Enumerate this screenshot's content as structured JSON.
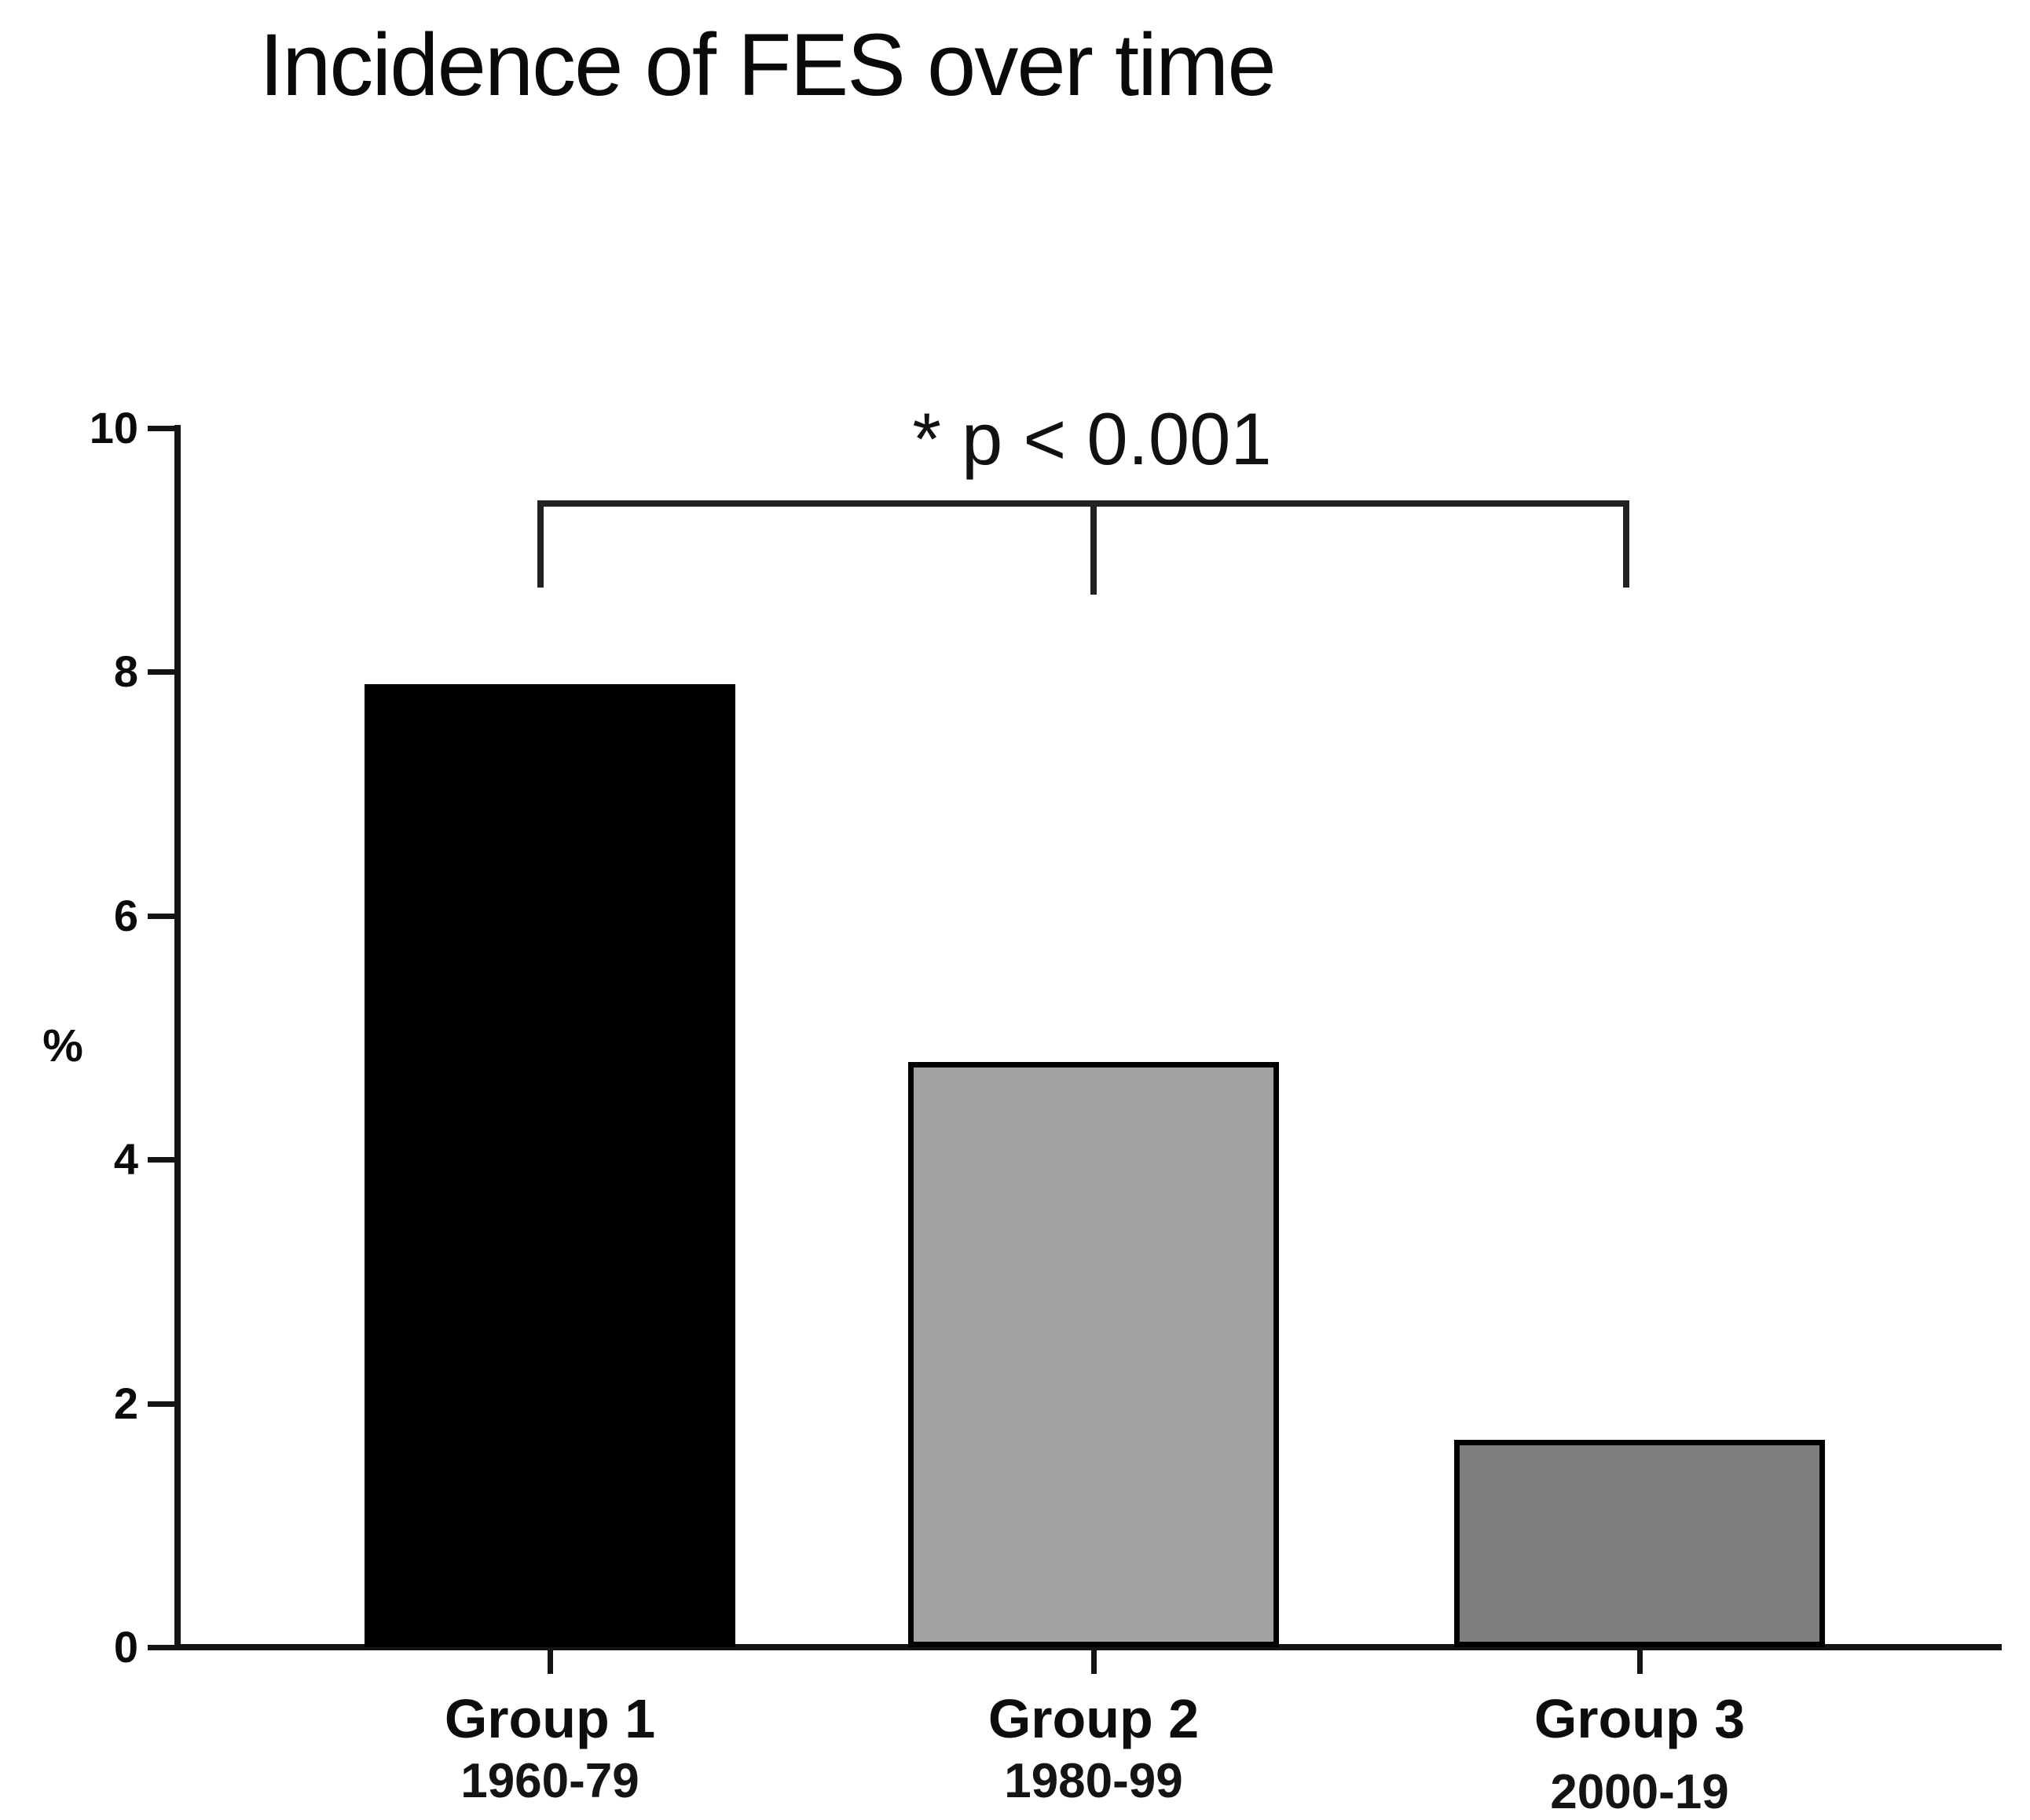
{
  "figure": {
    "title": "Incidence of FES over time",
    "significance_label": "* p < 0.001",
    "y_axis_label": "%"
  },
  "chart_data": {
    "type": "bar",
    "title": "Incidence of FES over time",
    "ylabel": "%",
    "xlabel": "",
    "ylim": [
      0,
      10
    ],
    "yticks": [
      0,
      2,
      4,
      6,
      8,
      10
    ],
    "categories": [
      "Group 1",
      "Group 2",
      "Group 3"
    ],
    "category_sublabels": [
      "1960-79",
      "1980-99",
      "2000-19"
    ],
    "values": [
      7.9,
      4.8,
      1.7
    ],
    "bar_colors": [
      "#000000",
      "#a1a1a4",
      "#7e7e7e"
    ],
    "bar_border_color": "#000000",
    "grid": false,
    "legend": false,
    "background": "#ffffff",
    "annotation": {
      "text": "* p < 0.001",
      "type": "significance-bracket",
      "spans_categories": [
        "Group 1",
        "Group 3"
      ],
      "mid_tick_category": "Group 2"
    }
  }
}
